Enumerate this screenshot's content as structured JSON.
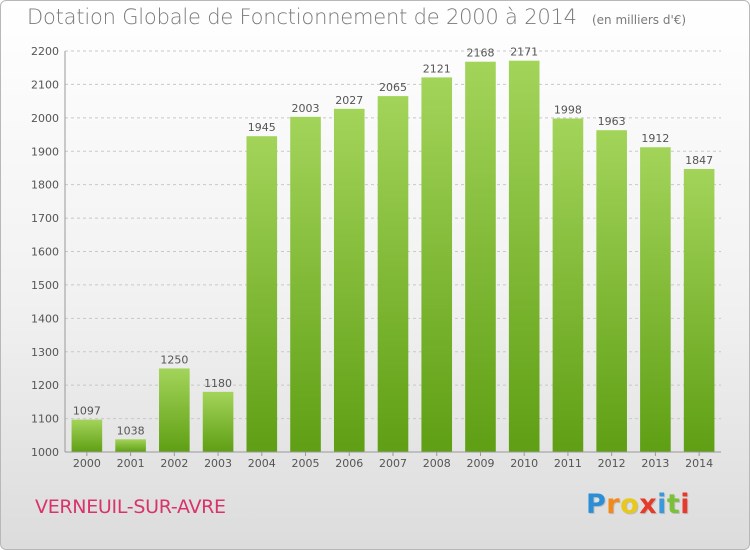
{
  "title": "Dotation Globale de Fonctionnement de 2000 à 2014",
  "unit_label": "(en milliers d'€)",
  "commune": "VERNEUIL-SUR-AVRE",
  "logo": {
    "letters": [
      "P",
      "r",
      "o",
      "x",
      "i",
      "t",
      "i"
    ],
    "colors": [
      "#2c8fd6",
      "#f28a1a",
      "#e8c81a",
      "#e63a2a",
      "#3a9ad9",
      "#7cc03a",
      "#e63a2a"
    ]
  },
  "colors": {
    "bar_top": "#a3d45a",
    "bar_bottom": "#5f9f14",
    "grid": "#c8c8c8",
    "text": "#555555",
    "commune": "#d8336b"
  },
  "chart_data": {
    "type": "bar",
    "categories": [
      "2000",
      "2001",
      "2002",
      "2003",
      "2004",
      "2005",
      "2006",
      "2007",
      "2008",
      "2009",
      "2010",
      "2011",
      "2012",
      "2013",
      "2014"
    ],
    "values": [
      1097,
      1038,
      1250,
      1180,
      1945,
      2003,
      2027,
      2065,
      2121,
      2168,
      2171,
      1998,
      1963,
      1912,
      1847
    ],
    "ylim": [
      1000,
      2200
    ],
    "yticks": [
      1000,
      1100,
      1200,
      1300,
      1400,
      1500,
      1600,
      1700,
      1800,
      1900,
      2000,
      2100,
      2200
    ],
    "grid": true,
    "legend": "none"
  }
}
